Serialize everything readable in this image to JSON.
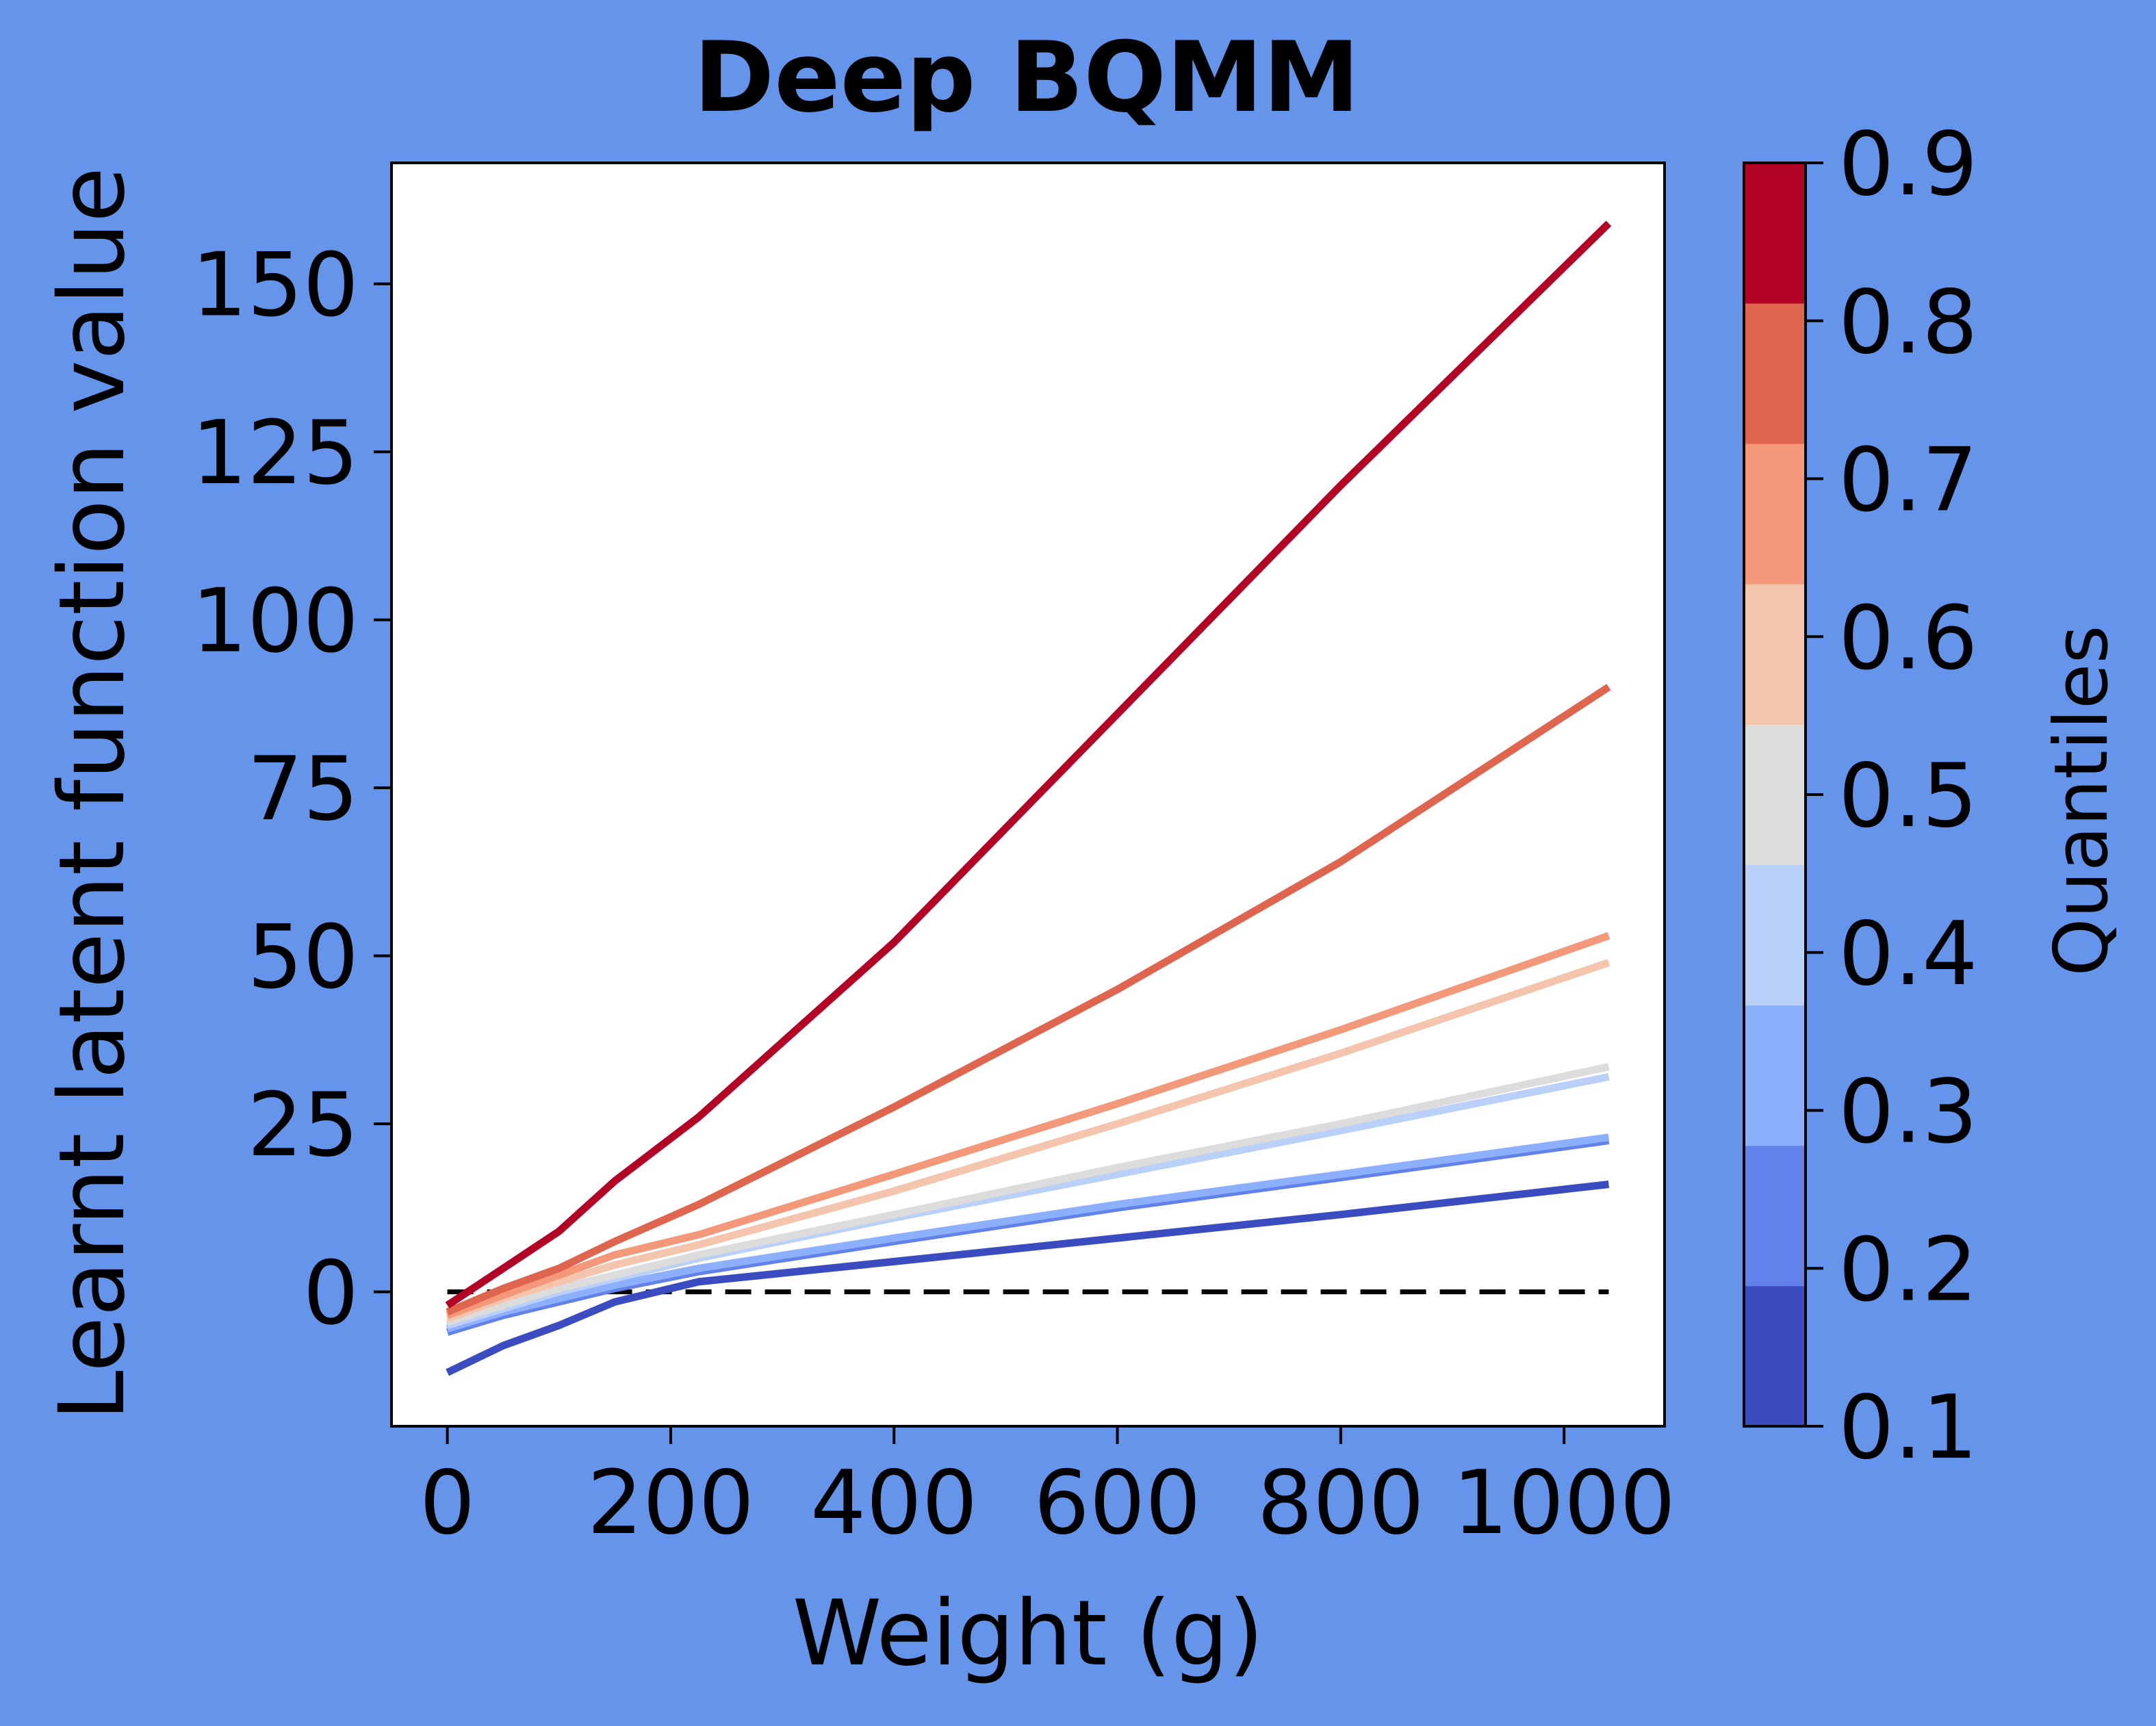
{
  "background_color": "#6495ea",
  "chart_data": {
    "type": "line",
    "title": "Deep BQMM",
    "xlabel": "Weight (g)",
    "ylabel": "Learnt latent function value",
    "xlim": [
      -50,
      1090
    ],
    "ylim": [
      -20,
      168
    ],
    "xticks": [
      0,
      200,
      400,
      600,
      800,
      1000
    ],
    "xtick_labels": [
      "0",
      "200",
      "400",
      "600",
      "800",
      "1000"
    ],
    "yticks": [
      0,
      25,
      50,
      75,
      100,
      125,
      150
    ],
    "ytick_labels": [
      "0",
      "25",
      "50",
      "75",
      "100",
      "125",
      "150"
    ],
    "grid": false,
    "reference_line": {
      "y": 0,
      "x_from": 0,
      "x_to": 1040,
      "style": "dashed",
      "color": "#000000"
    },
    "series": [
      {
        "quantile": 0.1,
        "color": "#3b4cc0",
        "points": [
          [
            0,
            -12
          ],
          [
            50,
            -8
          ],
          [
            100,
            -5
          ],
          [
            150,
            -1.5
          ],
          [
            225,
            1.5
          ],
          [
            400,
            4.5
          ],
          [
            600,
            8
          ],
          [
            800,
            11.5
          ],
          [
            1040,
            16
          ]
        ]
      },
      {
        "quantile": 0.2,
        "color": "#6282ea",
        "points": [
          [
            0,
            -6
          ],
          [
            50,
            -3.5
          ],
          [
            100,
            -1.5
          ],
          [
            150,
            0.5
          ],
          [
            225,
            3
          ],
          [
            400,
            7.5
          ],
          [
            600,
            12.5
          ],
          [
            800,
            17
          ],
          [
            1040,
            22.5
          ]
        ]
      },
      {
        "quantile": 0.3,
        "color": "#8db0fe",
        "points": [
          [
            0,
            -5.5
          ],
          [
            50,
            -3
          ],
          [
            100,
            -1
          ],
          [
            150,
            1
          ],
          [
            225,
            3.5
          ],
          [
            400,
            8
          ],
          [
            600,
            13
          ],
          [
            800,
            17.5
          ],
          [
            1040,
            23
          ]
        ]
      },
      {
        "quantile": 0.4,
        "color": "#b9d0f9",
        "points": [
          [
            0,
            -5
          ],
          [
            50,
            -2.5
          ],
          [
            100,
            0
          ],
          [
            150,
            2
          ],
          [
            225,
            5
          ],
          [
            400,
            11
          ],
          [
            600,
            17.5
          ],
          [
            800,
            24
          ],
          [
            1040,
            32
          ]
        ]
      },
      {
        "quantile": 0.5,
        "color": "#dddcdc",
        "points": [
          [
            0,
            -4.5
          ],
          [
            50,
            -2
          ],
          [
            100,
            0.5
          ],
          [
            150,
            2.5
          ],
          [
            225,
            5.5
          ],
          [
            400,
            11.5
          ],
          [
            600,
            18.5
          ],
          [
            800,
            25
          ],
          [
            1040,
            33.5
          ]
        ]
      },
      {
        "quantile": 0.6,
        "color": "#f5c4ad",
        "points": [
          [
            0,
            -4
          ],
          [
            50,
            -1
          ],
          [
            100,
            1.5
          ],
          [
            150,
            4
          ],
          [
            225,
            7
          ],
          [
            400,
            15
          ],
          [
            600,
            25
          ],
          [
            800,
            35.5
          ],
          [
            1040,
            49
          ]
        ]
      },
      {
        "quantile": 0.7,
        "color": "#f4987a",
        "points": [
          [
            0,
            -3.5
          ],
          [
            50,
            -0.5
          ],
          [
            100,
            2.5
          ],
          [
            150,
            5.5
          ],
          [
            225,
            8.5
          ],
          [
            400,
            17.5
          ],
          [
            600,
            28
          ],
          [
            800,
            39
          ],
          [
            1040,
            53
          ]
        ]
      },
      {
        "quantile": 0.8,
        "color": "#e0654f",
        "points": [
          [
            0,
            -3
          ],
          [
            50,
            0.5
          ],
          [
            100,
            3.5
          ],
          [
            150,
            7.5
          ],
          [
            225,
            13
          ],
          [
            400,
            27.5
          ],
          [
            600,
            45
          ],
          [
            800,
            64
          ],
          [
            1040,
            90
          ]
        ]
      },
      {
        "quantile": 0.9,
        "color": "#b40426",
        "points": [
          [
            0,
            -2
          ],
          [
            50,
            3.5
          ],
          [
            100,
            9
          ],
          [
            150,
            16.5
          ],
          [
            225,
            26
          ],
          [
            400,
            52
          ],
          [
            600,
            86
          ],
          [
            800,
            120
          ],
          [
            1040,
            159
          ]
        ]
      }
    ],
    "colorbar": {
      "label": "Quantiles",
      "ticks": [
        0.1,
        0.2,
        0.3,
        0.4,
        0.5,
        0.6,
        0.7,
        0.8,
        0.9
      ],
      "tick_labels": [
        "0.1",
        "0.2",
        "0.3",
        "0.4",
        "0.5",
        "0.6",
        "0.7",
        "0.8",
        "0.9"
      ],
      "range": [
        0.1,
        0.9
      ],
      "bands": [
        "#3b4cc0",
        "#6282ea",
        "#8db0fe",
        "#b9d0f9",
        "#dddcdc",
        "#f5c4ad",
        "#f4987a",
        "#e0654f",
        "#b40426"
      ]
    }
  }
}
